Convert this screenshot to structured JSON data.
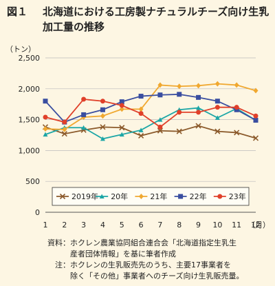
{
  "header": {
    "fig_no": "図１",
    "title": "北海道における工房製ナチュラルチーズ向け生乳加工量の推移"
  },
  "notes": {
    "source_key": "資料：",
    "source_text": "ホクレン農業協同組合連合会「北海道指定生乳生",
    "source_text2": "産者団体情報」を基に筆者作成",
    "note_key": "注：",
    "note_text": "ホクレンの生乳販売先のうち、主要17事業者を",
    "note_text2": "除く「その他」事業者へのチーズ向け生乳販売量。"
  },
  "chart_data": {
    "type": "line",
    "title": "北海道における工房製ナチュラルチーズ向け生乳加工量の推移",
    "unit_label": "（トン）",
    "x_suffix": "（月）",
    "categories": [
      "1",
      "2",
      "3",
      "4",
      "5",
      "6",
      "7",
      "8",
      "9",
      "10",
      "11",
      "12"
    ],
    "ylim": [
      0,
      2500
    ],
    "yticks": [
      "0",
      "500",
      "1,000",
      "1,500",
      "2,000",
      "2,500"
    ],
    "ytick_values": [
      0,
      500,
      1000,
      1500,
      2000,
      2500
    ],
    "grid": true,
    "legend_position": "bottom-inside",
    "series": [
      {
        "name": "2019年",
        "color": "#8b5a2b",
        "marker": "x",
        "values": [
          1380,
          1270,
          1330,
          1380,
          1370,
          1240,
          1320,
          1310,
          1400,
          1310,
          1290,
          1200
        ]
      },
      {
        "name": "20年",
        "color": "#1ba6a6",
        "marker": "triangle",
        "values": [
          1260,
          1370,
          1370,
          1190,
          1260,
          1330,
          1500,
          1660,
          1690,
          1530,
          1680,
          1490
        ]
      },
      {
        "name": "21年",
        "color": "#f0a830",
        "marker": "diamond",
        "values": [
          1350,
          1340,
          1540,
          1560,
          1670,
          1670,
          2060,
          2040,
          2050,
          2080,
          2060,
          1970
        ]
      },
      {
        "name": "22年",
        "color": "#3a4ea0",
        "marker": "square",
        "values": [
          1800,
          1460,
          1580,
          1660,
          1790,
          1880,
          1900,
          1910,
          1860,
          1800,
          1660,
          1490
        ]
      },
      {
        "name": "23年",
        "color": "#e0402a",
        "marker": "circle",
        "values": [
          1540,
          1460,
          1830,
          1800,
          1730,
          1600,
          1380,
          1620,
          1620,
          1700,
          1700,
          1560
        ]
      }
    ]
  }
}
